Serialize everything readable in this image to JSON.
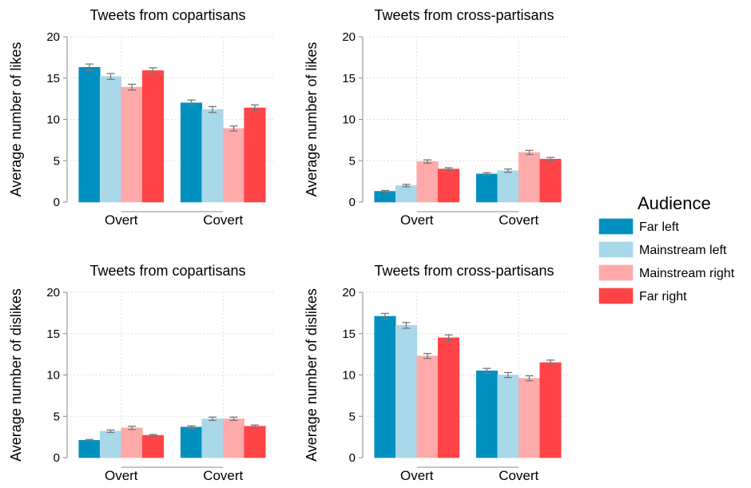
{
  "chart_data": {
    "type": "bar",
    "grid": true,
    "legend": {
      "title": "Audience",
      "placement": "right",
      "entries": [
        "Far left",
        "Mainstream left",
        "Mainstream right",
        "Far right"
      ]
    },
    "colors": {
      "Far left": "#0090c0",
      "Mainstream left": "#a8d8ea",
      "Mainstream right": "#ffaaaa",
      "Far right": "#ff4447",
      "error_bar": "#777777",
      "axis": "#888888",
      "grid": "#d5d5d5"
    },
    "panels": [
      {
        "title": "Tweets from copartisans",
        "ylabel": "Average number of likes",
        "categories": [
          "Overt",
          "Covert"
        ],
        "ylim": [
          0,
          20
        ],
        "yticks": [
          "0",
          "5",
          "10",
          "15",
          "20"
        ],
        "series": [
          {
            "name": "Far left",
            "values": [
              16.3,
              12.0
            ],
            "err": [
              0.4,
              0.35
            ]
          },
          {
            "name": "Mainstream left",
            "values": [
              15.2,
              11.2
            ],
            "err": [
              0.35,
              0.35
            ]
          },
          {
            "name": "Mainstream right",
            "values": [
              13.9,
              8.9
            ],
            "err": [
              0.35,
              0.3
            ]
          },
          {
            "name": "Far right",
            "values": [
              15.9,
              11.4
            ],
            "err": [
              0.35,
              0.35
            ]
          }
        ]
      },
      {
        "title": "Tweets from cross-partisans",
        "ylabel": "Average number of likes",
        "categories": [
          "Overt",
          "Covert"
        ],
        "ylim": [
          0,
          20
        ],
        "yticks": [
          "0",
          "5",
          "10",
          "15",
          "20"
        ],
        "series": [
          {
            "name": "Far left",
            "values": [
              1.3,
              3.4
            ],
            "err": [
              0.1,
              0.15
            ]
          },
          {
            "name": "Mainstream left",
            "values": [
              2.0,
              3.8
            ],
            "err": [
              0.15,
              0.2
            ]
          },
          {
            "name": "Mainstream right",
            "values": [
              4.9,
              6.0
            ],
            "err": [
              0.2,
              0.25
            ]
          },
          {
            "name": "Far right",
            "values": [
              4.0,
              5.2
            ],
            "err": [
              0.15,
              0.2
            ]
          }
        ]
      },
      {
        "title": "Tweets from copartisans",
        "ylabel": "Average number of dislikes",
        "categories": [
          "Overt",
          "Covert"
        ],
        "ylim": [
          0,
          20
        ],
        "yticks": [
          "0",
          "5",
          "10",
          "15",
          "20"
        ],
        "series": [
          {
            "name": "Far left",
            "values": [
              2.1,
              3.7
            ],
            "err": [
              0.1,
              0.15
            ]
          },
          {
            "name": "Mainstream left",
            "values": [
              3.2,
              4.7
            ],
            "err": [
              0.15,
              0.2
            ]
          },
          {
            "name": "Mainstream right",
            "values": [
              3.6,
              4.7
            ],
            "err": [
              0.2,
              0.2
            ]
          },
          {
            "name": "Far right",
            "values": [
              2.7,
              3.8
            ],
            "err": [
              0.1,
              0.15
            ]
          }
        ]
      },
      {
        "title": "Tweets from cross-partisans",
        "ylabel": "Average number of dislikes",
        "categories": [
          "Overt",
          "Covert"
        ],
        "ylim": [
          0,
          20
        ],
        "yticks": [
          "0",
          "5",
          "10",
          "15",
          "20"
        ],
        "series": [
          {
            "name": "Far left",
            "values": [
              17.1,
              10.5
            ],
            "err": [
              0.35,
              0.3
            ]
          },
          {
            "name": "Mainstream left",
            "values": [
              16.0,
              10.0
            ],
            "err": [
              0.35,
              0.3
            ]
          },
          {
            "name": "Mainstream right",
            "values": [
              12.3,
              9.6
            ],
            "err": [
              0.3,
              0.3
            ]
          },
          {
            "name": "Far right",
            "values": [
              14.5,
              11.5
            ],
            "err": [
              0.35,
              0.3
            ]
          }
        ]
      }
    ]
  }
}
